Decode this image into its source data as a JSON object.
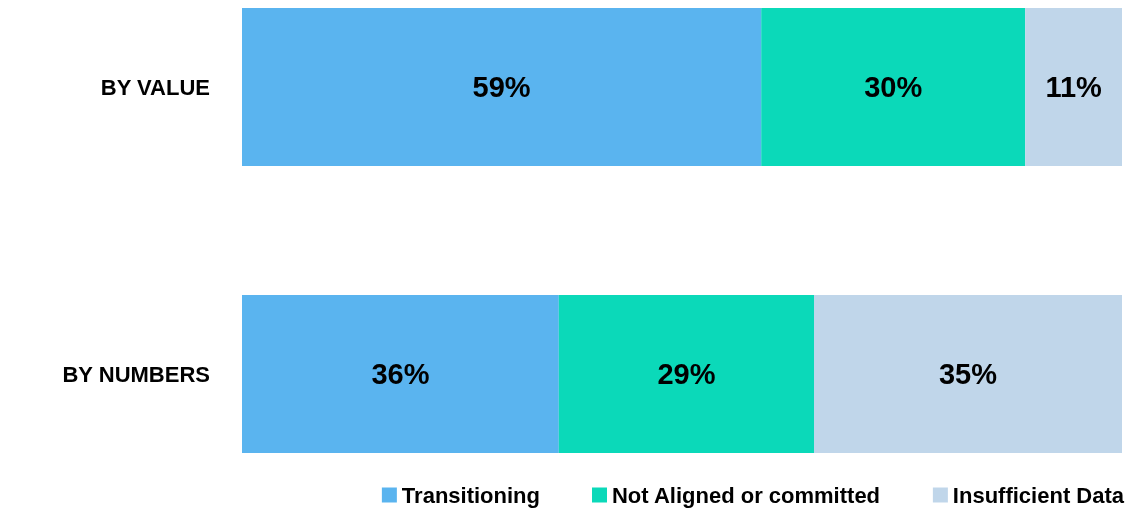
{
  "chart_data": {
    "type": "bar",
    "orientation": "horizontal",
    "stacked": true,
    "categories": [
      "BY VALUE",
      "BY NUMBERS"
    ],
    "series": [
      {
        "name": "Transitioning",
        "color": "#5ab4ef",
        "values": [
          59,
          36
        ],
        "value_labels": [
          "59%",
          "36%"
        ]
      },
      {
        "name": "Not Aligned or committed",
        "color": "#0bd9b9",
        "values": [
          30,
          29
        ],
        "value_labels": [
          "30%",
          "29%"
        ]
      },
      {
        "name": "Insufficient Data",
        "color": "#c0d6ea",
        "values": [
          11,
          35
        ],
        "value_labels": [
          "11%",
          "35%"
        ]
      }
    ],
    "xlim": [
      0,
      100
    ],
    "tick_labels": "y",
    "grid": false,
    "legend": "bottom"
  }
}
